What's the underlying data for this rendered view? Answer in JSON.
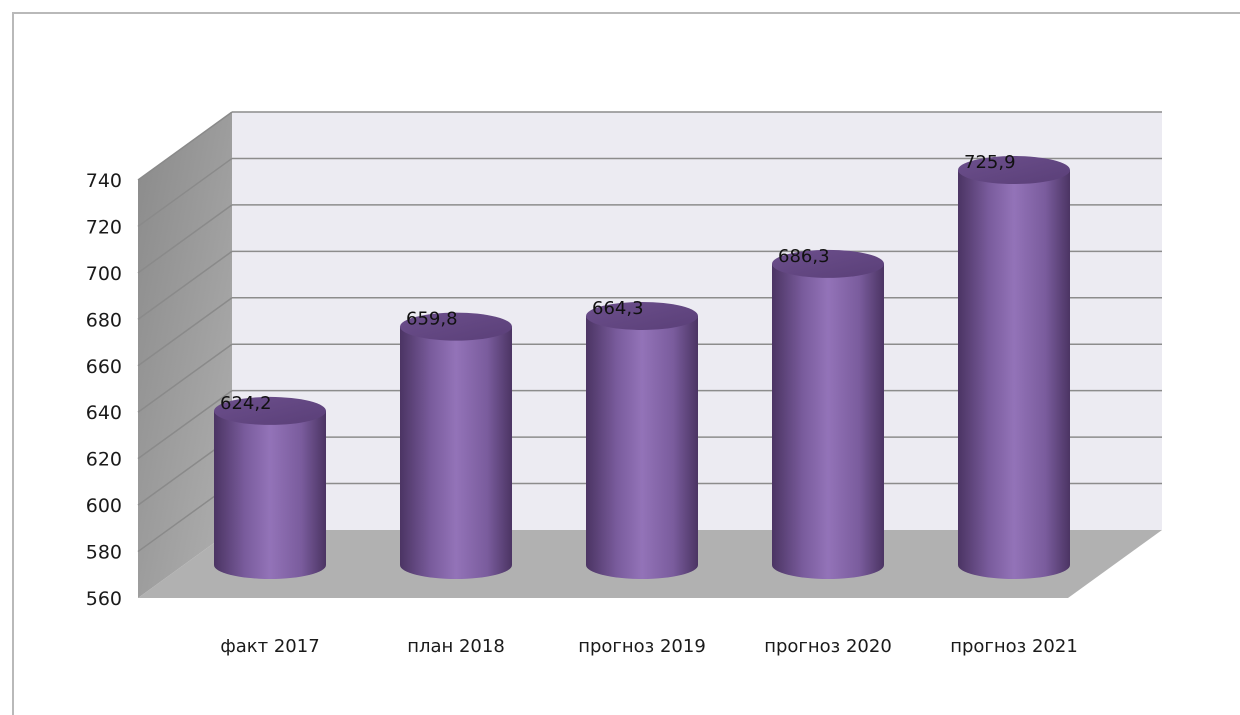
{
  "chart_data": {
    "type": "bar",
    "style": "3d-cylinder",
    "categories": [
      "факт 2017",
      "план 2018",
      "прогноз 2019",
      "прогноз 2020",
      "прогноз 2021"
    ],
    "values": [
      624.2,
      659.8,
      664.3,
      686.3,
      725.9
    ],
    "data_labels": [
      "624,2",
      "659,8",
      "664,3",
      "686,3",
      "725,9"
    ],
    "y_ticks": [
      "560",
      "580",
      "600",
      "620",
      "640",
      "660",
      "680",
      "700",
      "720",
      "740"
    ],
    "ylim": [
      560,
      740
    ],
    "grid": true,
    "legend": "none",
    "colors": {
      "bar": "#8064a2",
      "bar_dark": "#4b3463",
      "bar_light": "#a58bc6",
      "back_wall": "#ecebf2",
      "side_wall": "#a3a3a3",
      "floor": "#b1b1b1",
      "grid": "#8c8c8c"
    }
  }
}
